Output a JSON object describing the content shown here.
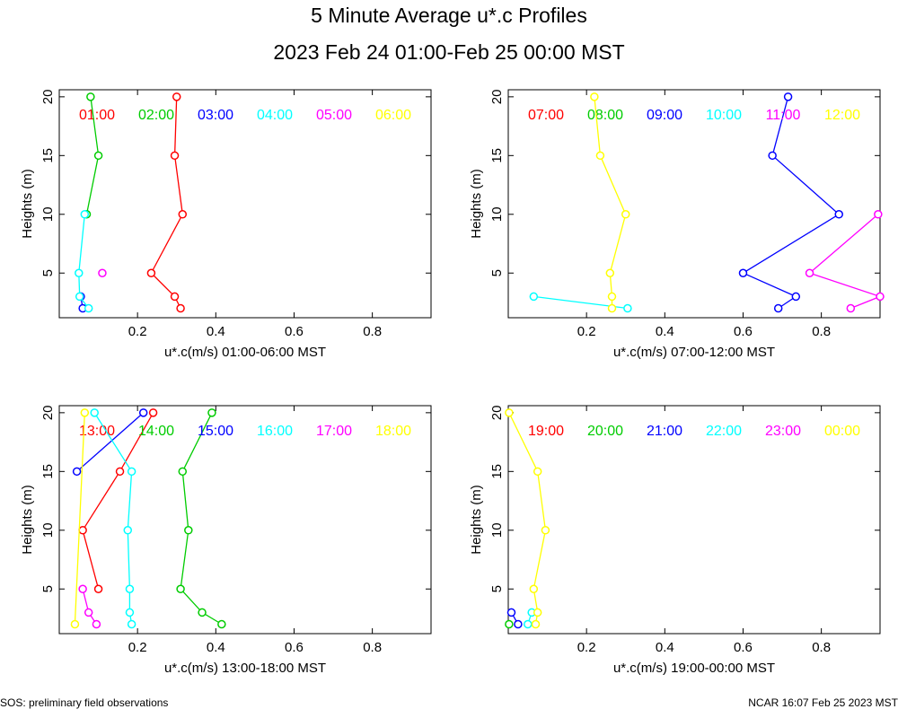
{
  "title": "5 Minute Average u*.c Profiles",
  "subtitle": "2023 Feb 24 01:00-Feb 25 00:00 MST",
  "footer_left": "SOS: preliminary field observations",
  "footer_right": "NCAR 16:07 Feb 25 2023 MST",
  "chart_data": [
    {
      "type": "line",
      "xlabel": "u*.c(m/s) 01:00-06:00 MST",
      "ylabel": "Heights (m)",
      "xlim": [
        0.0,
        0.95
      ],
      "ylim": [
        1.2,
        20.6
      ],
      "xticks": [
        0.2,
        0.4,
        0.6,
        0.8
      ],
      "yticks": [
        5,
        10,
        15,
        20
      ],
      "series": [
        {
          "name": "01:00",
          "color": "#ff0000",
          "points": [
            [
              0.3,
              20
            ],
            [
              0.295,
              15
            ],
            [
              0.315,
              10
            ],
            [
              0.235,
              5
            ],
            [
              0.295,
              3
            ],
            [
              0.31,
              2
            ]
          ]
        },
        {
          "name": "02:00",
          "color": "#00cc00",
          "points": [
            [
              0.08,
              20
            ],
            [
              0.1,
              15
            ],
            [
              0.07,
              10
            ]
          ]
        },
        {
          "name": "03:00",
          "color": "#0000ff",
          "points": [
            [
              0.055,
              3
            ],
            [
              0.06,
              2
            ]
          ]
        },
        {
          "name": "04:00",
          "color": "#00ffff",
          "points": [
            [
              0.065,
              10
            ],
            [
              0.05,
              5
            ],
            [
              0.052,
              3
            ],
            [
              0.075,
              2
            ]
          ]
        },
        {
          "name": "05:00",
          "color": "#ff00ff",
          "points": [
            [
              0.11,
              5
            ]
          ]
        },
        {
          "name": "06:00",
          "color": "#ffff00",
          "points": []
        }
      ]
    },
    {
      "type": "line",
      "xlabel": "u*.c(m/s) 07:00-12:00 MST",
      "ylabel": "Heights (m)",
      "xlim": [
        0.0,
        0.95
      ],
      "ylim": [
        1.2,
        20.6
      ],
      "xticks": [
        0.2,
        0.4,
        0.6,
        0.8
      ],
      "yticks": [
        5,
        10,
        15,
        20
      ],
      "series": [
        {
          "name": "07:00",
          "color": "#ff0000",
          "points": []
        },
        {
          "name": "08:00",
          "color": "#00cc00",
          "points": []
        },
        {
          "name": "09:00",
          "color": "#0000ff",
          "points": [
            [
              0.715,
              20
            ],
            [
              0.675,
              15
            ],
            [
              0.845,
              10
            ],
            [
              0.6,
              5
            ],
            [
              0.735,
              3
            ],
            [
              0.69,
              2
            ]
          ]
        },
        {
          "name": "10:00",
          "color": "#00ffff",
          "points": [
            [
              0.065,
              3
            ],
            [
              0.305,
              2
            ]
          ]
        },
        {
          "name": "11:00",
          "color": "#ff00ff",
          "points": [
            [
              0.945,
              10
            ],
            [
              0.77,
              5
            ],
            [
              0.95,
              3
            ],
            [
              0.875,
              2
            ]
          ]
        },
        {
          "name": "12:00",
          "color": "#ffff00",
          "points": [
            [
              0.22,
              20
            ],
            [
              0.235,
              15
            ],
            [
              0.3,
              10
            ],
            [
              0.26,
              5
            ],
            [
              0.265,
              3
            ],
            [
              0.265,
              2
            ]
          ]
        }
      ]
    },
    {
      "type": "line",
      "xlabel": "u*.c(m/s) 13:00-18:00 MST",
      "ylabel": "Heights (m)",
      "xlim": [
        0.0,
        0.95
      ],
      "ylim": [
        1.2,
        20.6
      ],
      "xticks": [
        0.2,
        0.4,
        0.6,
        0.8
      ],
      "yticks": [
        5,
        10,
        15,
        20
      ],
      "series": [
        {
          "name": "13:00",
          "color": "#ff0000",
          "points": [
            [
              0.24,
              20
            ],
            [
              0.155,
              15
            ],
            [
              0.06,
              10
            ],
            [
              0.1,
              5
            ]
          ]
        },
        {
          "name": "14:00",
          "color": "#00cc00",
          "points": [
            [
              0.39,
              20
            ],
            [
              0.315,
              15
            ],
            [
              0.33,
              10
            ],
            [
              0.31,
              5
            ],
            [
              0.365,
              3
            ],
            [
              0.415,
              2
            ]
          ]
        },
        {
          "name": "15:00",
          "color": "#0000ff",
          "points": [
            [
              0.215,
              20
            ],
            [
              0.045,
              15
            ]
          ]
        },
        {
          "name": "16:00",
          "color": "#00ffff",
          "points": [
            [
              0.09,
              20
            ],
            [
              0.185,
              15
            ],
            [
              0.175,
              10
            ],
            [
              0.18,
              5
            ],
            [
              0.18,
              3
            ],
            [
              0.185,
              2
            ]
          ]
        },
        {
          "name": "17:00",
          "color": "#ff00ff",
          "points": [
            [
              0.06,
              5
            ],
            [
              0.075,
              3
            ],
            [
              0.095,
              2
            ]
          ]
        },
        {
          "name": "18:00",
          "color": "#ffff00",
          "points": [
            [
              0.065,
              20
            ],
            [
              0.04,
              2
            ]
          ]
        }
      ]
    },
    {
      "type": "line",
      "xlabel": "u*.c(m/s) 19:00-00:00 MST",
      "ylabel": "Heights (m)",
      "xlim": [
        0.0,
        0.95
      ],
      "ylim": [
        1.2,
        20.6
      ],
      "xticks": [
        0.2,
        0.4,
        0.6,
        0.8
      ],
      "yticks": [
        5,
        10,
        15,
        20
      ],
      "series": [
        {
          "name": "19:00",
          "color": "#ff0000",
          "points": []
        },
        {
          "name": "20:00",
          "color": "#00cc00",
          "points": [
            [
              0.002,
              2
            ]
          ]
        },
        {
          "name": "21:00",
          "color": "#0000ff",
          "points": [
            [
              0.008,
              3
            ],
            [
              0.025,
              2
            ]
          ]
        },
        {
          "name": "22:00",
          "color": "#00ffff",
          "points": [
            [
              0.06,
              3
            ],
            [
              0.05,
              2
            ]
          ]
        },
        {
          "name": "23:00",
          "color": "#ff00ff",
          "points": []
        },
        {
          "name": "00:00",
          "color": "#ffff00",
          "points": [
            [
              0.002,
              20
            ],
            [
              0.075,
              15
            ],
            [
              0.095,
              10
            ],
            [
              0.065,
              5
            ],
            [
              0.075,
              3
            ],
            [
              0.07,
              2
            ]
          ]
        }
      ]
    }
  ]
}
